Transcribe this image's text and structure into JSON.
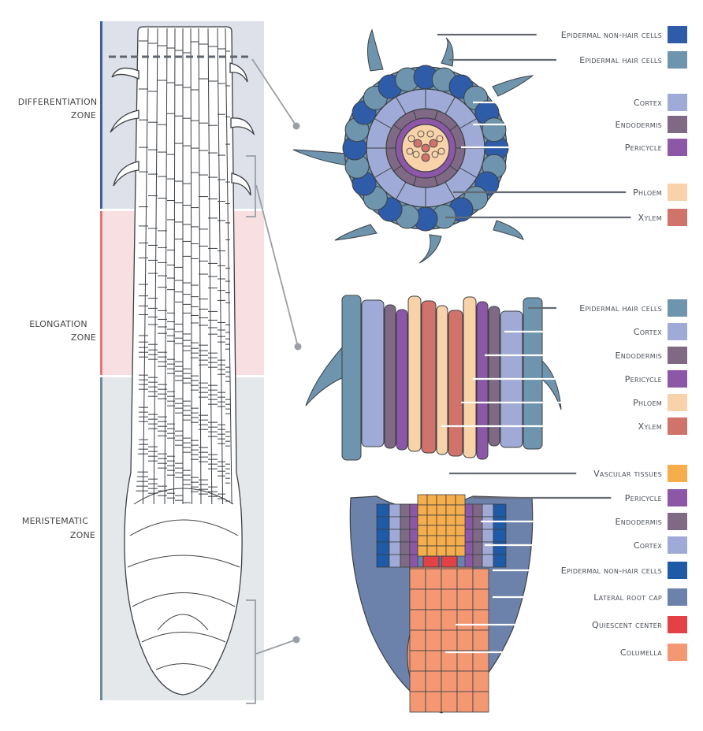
{
  "zones": {
    "differentiation": [
      "DIFFERENTIATION",
      "ZONE"
    ],
    "elongation": [
      "ELONGATION",
      "ZONE"
    ],
    "meristematic": [
      "MERISTEMATIC",
      "ZONE"
    ]
  },
  "colors": {
    "differentiation_bg": "#dfe1ea",
    "elongation_bg": "#f7dfe2",
    "meristematic_bg": "#e5e8ea",
    "differentiation_bar": "#3f5fa0",
    "elongation_bar": "#e8747a",
    "meristematic_bar": "#6d8a98"
  },
  "cross_section": {
    "labels": [
      {
        "text": "Epidermal non-hair cells",
        "color": "#2f5ca8"
      },
      {
        "text": "Epidermal hair cells",
        "color": "#6e95ad"
      },
      {
        "text": "Cortex",
        "color": "#9fabd6"
      },
      {
        "text": "Endodermis",
        "color": "#806985"
      },
      {
        "text": "Pericycle",
        "color": "#8d57a8"
      },
      {
        "text": "Phloem",
        "color": "#f8d2a8"
      },
      {
        "text": "Xylem",
        "color": "#d0736a"
      }
    ]
  },
  "longitudinal": {
    "labels": [
      {
        "text": "Epidermal hair cells",
        "color": "#6e95ad"
      },
      {
        "text": "Cortex",
        "color": "#9fabd6"
      },
      {
        "text": "Endodermis",
        "color": "#806985"
      },
      {
        "text": "Pericycle",
        "color": "#8d57a8"
      },
      {
        "text": "Phloem",
        "color": "#f8d2a8"
      },
      {
        "text": "Xylem",
        "color": "#d0736a"
      }
    ]
  },
  "root_tip": {
    "labels": [
      {
        "text": "Vascular tissues",
        "color": "#f5ae4b"
      },
      {
        "text": "Pericycle",
        "color": "#8d57a8"
      },
      {
        "text": "Endodermis",
        "color": "#806985"
      },
      {
        "text": "Cortex",
        "color": "#9fabd6"
      },
      {
        "text": "Epidermal non-hair cells",
        "color": "#1f5aa6"
      },
      {
        "text": "Lateral root cap",
        "color": "#6d82aa"
      },
      {
        "text": "Quiescent center",
        "color": "#e24246"
      },
      {
        "text": "Columella",
        "color": "#f39873"
      }
    ]
  }
}
